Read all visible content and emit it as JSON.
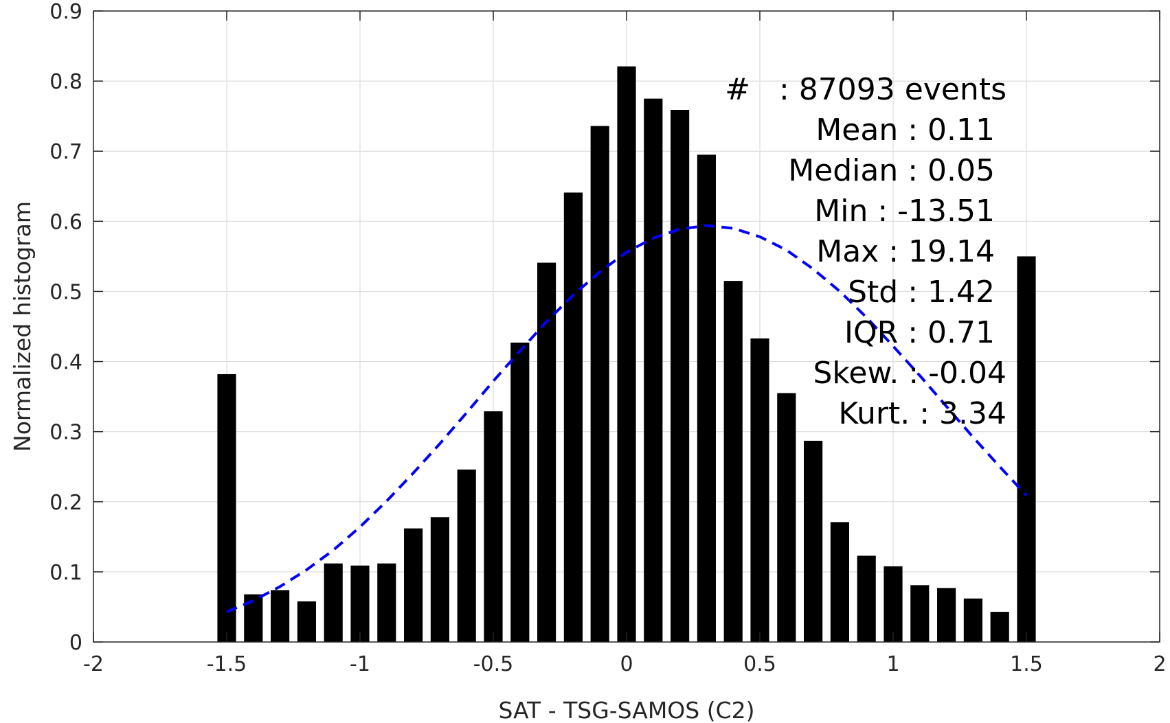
{
  "chart_data": {
    "type": "bar",
    "xlabel": "SAT - TSG-SAMOS (C2)",
    "ylabel": "Normalized histogram",
    "xlim": [
      -2,
      2
    ],
    "ylim": [
      0,
      0.9
    ],
    "xticks": [
      -2,
      -1.5,
      -1,
      -0.5,
      0,
      0.5,
      1,
      1.5,
      2
    ],
    "xtick_labels": [
      "-2",
      "-1.5",
      "-1",
      "-0.5",
      "0",
      "0.5",
      "1",
      "1.5",
      "2"
    ],
    "yticks": [
      0,
      0.1,
      0.2,
      0.3,
      0.4,
      0.5,
      0.6,
      0.7,
      0.8,
      0.9
    ],
    "ytick_labels": [
      "0",
      "0.1",
      "0.2",
      "0.3",
      "0.4",
      "0.5",
      "0.6",
      "0.7",
      "0.8",
      "0.9"
    ],
    "grid": true,
    "bar_color": "#000000",
    "bar_width": 0.07,
    "bins": [
      -1.5,
      -1.4,
      -1.3,
      -1.2,
      -1.1,
      -1.0,
      -0.9,
      -0.8,
      -0.7,
      -0.6,
      -0.5,
      -0.4,
      -0.3,
      -0.2,
      -0.1,
      0.0,
      0.1,
      0.2,
      0.3,
      0.4,
      0.5,
      0.6,
      0.7,
      0.8,
      0.9,
      1.0,
      1.1,
      1.2,
      1.3,
      1.4,
      1.5
    ],
    "values": [
      0.382,
      0.068,
      0.074,
      0.058,
      0.112,
      0.109,
      0.112,
      0.162,
      0.178,
      0.246,
      0.329,
      0.427,
      0.541,
      0.641,
      0.736,
      0.821,
      0.775,
      0.759,
      0.695,
      0.515,
      0.433,
      0.355,
      0.287,
      0.171,
      0.123,
      0.108,
      0.081,
      0.077,
      0.062,
      0.043,
      0.55
    ],
    "fit_curve": {
      "style": "dashed",
      "color": "#0000ff",
      "x": [
        -1.5,
        -1.4,
        -1.3,
        -1.2,
        -1.1,
        -1.0,
        -0.9,
        -0.8,
        -0.7,
        -0.6,
        -0.5,
        -0.4,
        -0.3,
        -0.2,
        -0.1,
        0.0,
        0.1,
        0.2,
        0.3,
        0.4,
        0.5,
        0.6,
        0.7,
        0.8,
        0.9,
        1.0,
        1.1,
        1.2,
        1.3,
        1.4,
        1.5
      ],
      "y": [
        0.043,
        0.059,
        0.079,
        0.103,
        0.131,
        0.164,
        0.201,
        0.241,
        0.283,
        0.327,
        0.372,
        0.415,
        0.457,
        0.495,
        0.528,
        0.556,
        0.576,
        0.589,
        0.594,
        0.59,
        0.578,
        0.559,
        0.532,
        0.5,
        0.463,
        0.422,
        0.38,
        0.336,
        0.292,
        0.25,
        0.209
      ]
    },
    "stats": [
      "#   : 87093 events",
      "Mean : 0.11",
      "Median : 0.05",
      "Min : -13.51",
      "Max : 19.14",
      "Std : 1.42",
      "IQR : 0.71",
      "Skew. : -0.04",
      "Kurt. : 3.34"
    ],
    "colors": {
      "axis": "#262626",
      "grid": "#dddddd"
    }
  }
}
